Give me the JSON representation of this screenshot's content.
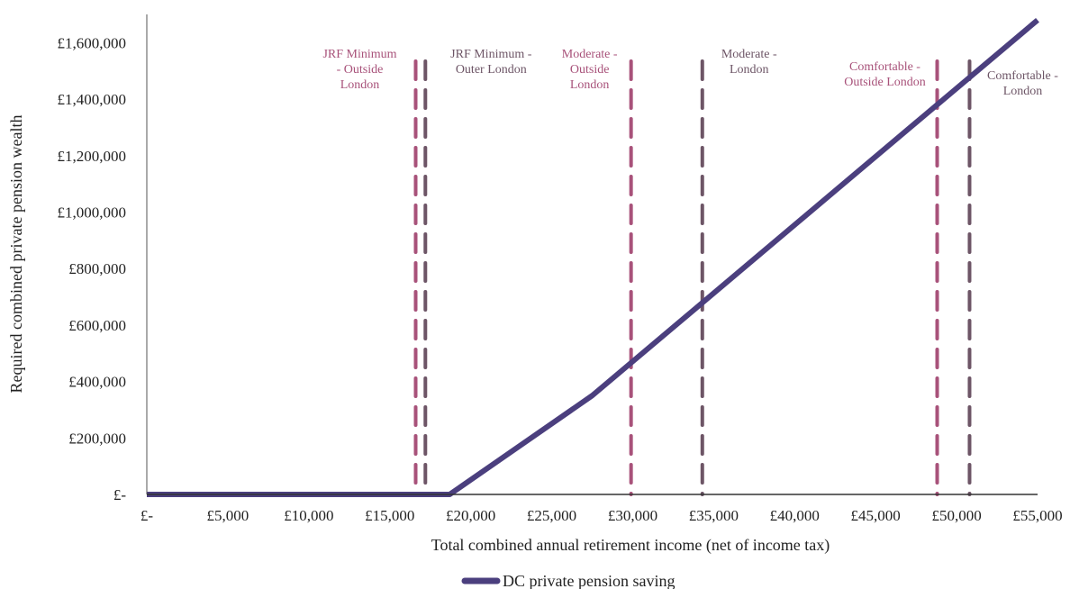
{
  "chart_data": {
    "type": "line",
    "title": "",
    "xlabel": "Total combined annual retirement income (net of income tax)",
    "ylabel": "Required combined private pension wealth",
    "xlim": [
      0,
      55000
    ],
    "ylim": [
      0,
      1700000
    ],
    "x_ticks": [
      0,
      5000,
      10000,
      15000,
      20000,
      25000,
      30000,
      35000,
      40000,
      45000,
      50000,
      55000
    ],
    "x_tick_labels": [
      "£-",
      "£5,000",
      "£10,000",
      "£15,000",
      "£20,000",
      "£25,000",
      "£30,000",
      "£35,000",
      "£40,000",
      "£45,000",
      "£50,000",
      "£55,000"
    ],
    "y_ticks": [
      0,
      200000,
      400000,
      600000,
      800000,
      1000000,
      1200000,
      1400000,
      1600000
    ],
    "y_tick_labels": [
      "£-",
      "£200,000",
      "£400,000",
      "£600,000",
      "£800,000",
      "£1,000,000",
      "£1,200,000",
      "£1,400,000",
      "£1,600,000"
    ],
    "grid": false,
    "legend_position": "bottom",
    "series": [
      {
        "name": "DC private pension saving",
        "color": "#4b3f7e",
        "x": [
          0,
          18700,
          27500,
          55000
        ],
        "y": [
          0,
          0,
          350000,
          1680000
        ]
      }
    ],
    "reference_lines": [
      {
        "x": 16600,
        "label": [
          "JRF Minimum",
          "- Outside",
          "London"
        ],
        "color": "#a8527a"
      },
      {
        "x": 17200,
        "label": [
          "JRF Minimum -",
          "Outer London"
        ],
        "color": "#6d5566"
      },
      {
        "x": 29900,
        "label": [
          "Moderate -",
          "Outside",
          "London"
        ],
        "color": "#a8527a"
      },
      {
        "x": 34300,
        "label": [
          "Moderate -",
          "London"
        ],
        "color": "#6d5566"
      },
      {
        "x": 48800,
        "label": [
          "Comfortable -",
          "Outside London"
        ],
        "color": "#a8527a"
      },
      {
        "x": 50800,
        "label": [
          "Comfortable -",
          "London"
        ],
        "color": "#6d5566"
      }
    ]
  }
}
